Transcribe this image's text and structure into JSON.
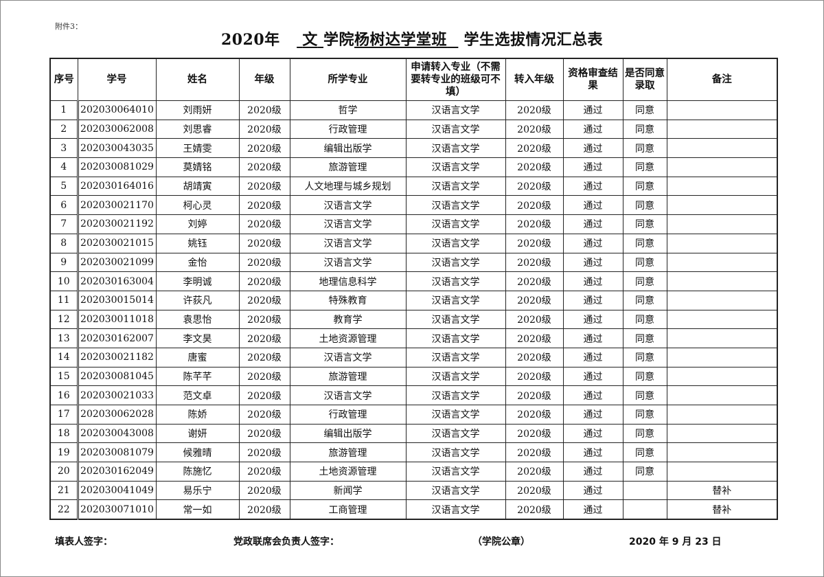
{
  "attachment_label": "附件3：",
  "title": {
    "year": "2020年",
    "college": "文",
    "college_suffix": "学院",
    "class_name": "杨树达学堂班",
    "suffix": "学生选拔情况汇总表"
  },
  "headers": [
    "序号",
    "学号",
    "姓名",
    "年级",
    "所学专业",
    "申请转入专业（不需要转专业的班级可不填）",
    "转入年级",
    "资格审查结果",
    "是否同意录取",
    "备注"
  ],
  "rows": [
    [
      "1",
      "202030064010",
      "刘雨妍",
      "2020级",
      "哲学",
      "汉语言文学",
      "2020级",
      "通过",
      "同意",
      ""
    ],
    [
      "2",
      "202030062008",
      "刘思睿",
      "2020级",
      "行政管理",
      "汉语言文学",
      "2020级",
      "通过",
      "同意",
      ""
    ],
    [
      "3",
      "202030043035",
      "王婧雯",
      "2020级",
      "编辑出版学",
      "汉语言文学",
      "2020级",
      "通过",
      "同意",
      ""
    ],
    [
      "4",
      "202030081029",
      "莫婧铭",
      "2020级",
      "旅游管理",
      "汉语言文学",
      "2020级",
      "通过",
      "同意",
      ""
    ],
    [
      "5",
      "202030164016",
      "胡靖寅",
      "2020级",
      "人文地理与城乡规划",
      "汉语言文学",
      "2020级",
      "通过",
      "同意",
      ""
    ],
    [
      "6",
      "202030021170",
      "柯心灵",
      "2020级",
      "汉语言文学",
      "汉语言文学",
      "2020级",
      "通过",
      "同意",
      ""
    ],
    [
      "7",
      "202030021192",
      "刘婷",
      "2020级",
      "汉语言文学",
      "汉语言文学",
      "2020级",
      "通过",
      "同意",
      ""
    ],
    [
      "8",
      "202030021015",
      "姚钰",
      "2020级",
      "汉语言文学",
      "汉语言文学",
      "2020级",
      "通过",
      "同意",
      ""
    ],
    [
      "9",
      "202030021099",
      "金怡",
      "2020级",
      "汉语言文学",
      "汉语言文学",
      "2020级",
      "通过",
      "同意",
      ""
    ],
    [
      "10",
      "202030163004",
      "李明诚",
      "2020级",
      "地理信息科学",
      "汉语言文学",
      "2020级",
      "通过",
      "同意",
      ""
    ],
    [
      "11",
      "202030015014",
      "许荻凡",
      "2020级",
      "特殊教育",
      "汉语言文学",
      "2020级",
      "通过",
      "同意",
      ""
    ],
    [
      "12",
      "202030011018",
      "袁思怡",
      "2020级",
      "教育学",
      "汉语言文学",
      "2020级",
      "通过",
      "同意",
      ""
    ],
    [
      "13",
      "202030162007",
      "李文昊",
      "2020级",
      "土地资源管理",
      "汉语言文学",
      "2020级",
      "通过",
      "同意",
      ""
    ],
    [
      "14",
      "202030021182",
      "唐蜜",
      "2020级",
      "汉语言文学",
      "汉语言文学",
      "2020级",
      "通过",
      "同意",
      ""
    ],
    [
      "15",
      "202030081045",
      "陈芊芊",
      "2020级",
      "旅游管理",
      "汉语言文学",
      "2020级",
      "通过",
      "同意",
      ""
    ],
    [
      "16",
      "202030021033",
      "范文卓",
      "2020级",
      "汉语言文学",
      "汉语言文学",
      "2020级",
      "通过",
      "同意",
      ""
    ],
    [
      "17",
      "202030062028",
      "陈娇",
      "2020级",
      "行政管理",
      "汉语言文学",
      "2020级",
      "通过",
      "同意",
      ""
    ],
    [
      "18",
      "202030043008",
      "谢妍",
      "2020级",
      "编辑出版学",
      "汉语言文学",
      "2020级",
      "通过",
      "同意",
      ""
    ],
    [
      "19",
      "202030081079",
      "候雅晴",
      "2020级",
      "旅游管理",
      "汉语言文学",
      "2020级",
      "通过",
      "同意",
      ""
    ],
    [
      "20",
      "202030162049",
      "陈施忆",
      "2020级",
      "土地资源管理",
      "汉语言文学",
      "2020级",
      "通过",
      "同意",
      ""
    ],
    [
      "21",
      "202030041049",
      "易乐宁",
      "2020级",
      "新闻学",
      "汉语言文学",
      "2020级",
      "通过",
      "",
      "替补"
    ],
    [
      "22",
      "202030071010",
      "常一如",
      "2020级",
      "工商管理",
      "汉语言文学",
      "2020级",
      "通过",
      "",
      "替补"
    ]
  ],
  "footer": {
    "filler_signature": "填表人签字：",
    "leader_signature": "党政联席会负责人签字：",
    "seal": "（学院公章）",
    "date": "2020 年 9 月 23 日"
  }
}
